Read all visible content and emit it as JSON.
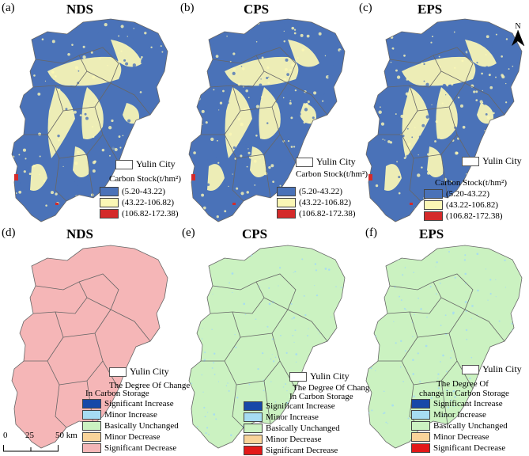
{
  "colors": {
    "carbon_low": "#4a72b8",
    "carbon_mid": "#fbf7b5",
    "carbon_high": "#d42a2a",
    "sig_increase": "#1748a8",
    "minor_increase": "#a6dcf2",
    "basically_unchanged": "#cbf2c1",
    "minor_decrease": "#f9d49a",
    "sig_decrease": "#f5b6b7",
    "sig_decrease_legend": "#e31919",
    "boundary": "#666666"
  },
  "panels_top": [
    {
      "label": "(a)",
      "title": "NDS",
      "city": "Yulin City",
      "stock_title": "Carbon Stock(t/hm²)",
      "classes": [
        "(5.20-43.22)",
        "(43.22-106.82)",
        "(106.82-172.38)"
      ]
    },
    {
      "label": "(b)",
      "title": "CPS",
      "city": "Yulin City",
      "stock_title": "Carbon Stock(t/hm²)",
      "classes": [
        "(5.20-43.22)",
        "(43.22-106.82)",
        "(106.82-172.38)"
      ]
    },
    {
      "label": "(c)",
      "title": "EPS",
      "city": "Yulin City",
      "stock_title": "Carbon Stock(t/hm²)",
      "classes": [
        "(5.20-43.22)",
        "(43.22-106.82)",
        "(106.82-172.38)"
      ]
    }
  ],
  "panels_bottom": [
    {
      "label": "(d)",
      "title": "NDS",
      "city": "Yulin City",
      "change_title": [
        "The Degree Of Change",
        "In Carbon Storage"
      ],
      "classes": [
        "Significant Increase",
        "Minor Increase",
        "Basically Unchanged",
        "Minor Decrease",
        "Significant Decrease"
      ],
      "fill": "sig_decrease"
    },
    {
      "label": "(e)",
      "title": "CPS",
      "city": "Yulin City",
      "change_title": [
        "The Degree Of  Change",
        "In Carbon Storage"
      ],
      "classes": [
        "Significant Increase",
        "Minor Increase",
        "Basically Unchanged",
        "Minor Decrease",
        "Significant Decrease"
      ],
      "fill": "basically_unchanged"
    },
    {
      "label": "(f)",
      "title": "EPS",
      "city": "Yulin City",
      "change_title": [
        "The Degree Of",
        "change in Carbon Storage"
      ],
      "classes": [
        "Significant Increase",
        "Minor Increase",
        "Basically Unchanged",
        "Minor Decrease",
        "Significant Decrease"
      ],
      "fill": "basically_unchanged"
    }
  ],
  "north": {
    "label": "N"
  },
  "scale": {
    "ticks": [
      "0",
      "25",
      "50 km"
    ]
  }
}
